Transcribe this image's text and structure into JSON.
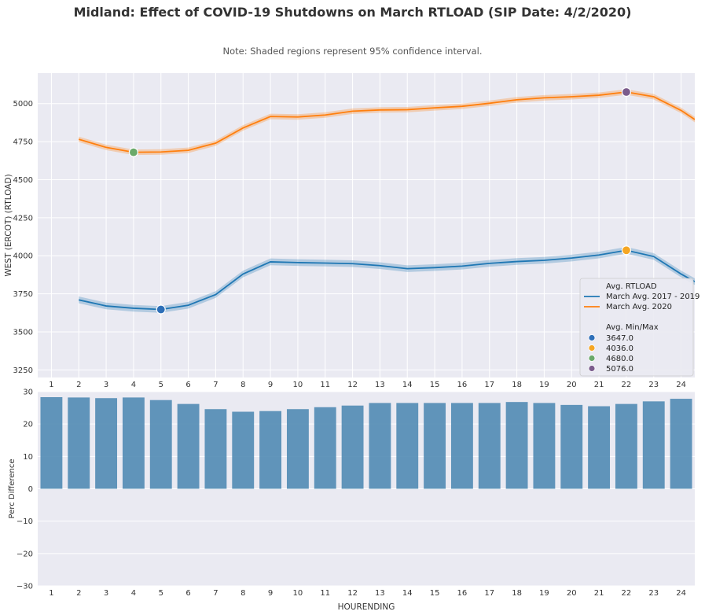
{
  "title": "Midland: Effect of COVID-19 Shutdowns on March RTLOAD (SIP Date: 4/2/2020)",
  "note": "Note: Shaded regions represent 95% confidence interval.",
  "colors": {
    "background": "#eaeaf2",
    "series_2017_2019": "#1f77b4",
    "series_2020": "#ff7f0e",
    "bar": "#4c87b2",
    "marker_3647": "#2e6fb8",
    "marker_4036": "#f5a623",
    "marker_4680": "#6aa96a",
    "marker_5076": "#7b5c8c"
  },
  "chart_data": [
    {
      "type": "line",
      "xlabel": "",
      "ylabel": "WEST (ERCOT) (RTLOAD)",
      "x": [
        2,
        3,
        4,
        5,
        6,
        7,
        8,
        9,
        10,
        11,
        12,
        13,
        14,
        15,
        16,
        17,
        18,
        19,
        20,
        21,
        22,
        23,
        24,
        24.5
      ],
      "xticks": [
        "1",
        "2",
        "3",
        "4",
        "5",
        "6",
        "7",
        "8",
        "9",
        "10",
        "11",
        "12",
        "13",
        "14",
        "15",
        "16",
        "17",
        "18",
        "19",
        "20",
        "21",
        "22",
        "23",
        "24"
      ],
      "xlim": [
        0.5,
        24.5
      ],
      "ylim": [
        3200,
        5200
      ],
      "yticks": [
        3250,
        3500,
        3750,
        4000,
        4250,
        4500,
        4750,
        5000
      ],
      "series": [
        {
          "name": "March Avg. 2017 - 2019",
          "values": [
            3710,
            3670,
            3655,
            3647,
            3675,
            3745,
            3880,
            3960,
            3955,
            3952,
            3948,
            3935,
            3915,
            3922,
            3932,
            3950,
            3962,
            3970,
            3985,
            4005,
            4036,
            3995,
            3880,
            3830
          ],
          "ci": 22
        },
        {
          "name": "March Avg. 2020",
          "values": [
            4765,
            4712,
            4680,
            4682,
            4693,
            4740,
            4840,
            4915,
            4912,
            4925,
            4950,
            4958,
            4960,
            4972,
            4982,
            5002,
            5025,
            5038,
            5045,
            5055,
            5076,
            5045,
            4955,
            4895
          ],
          "ci": 18
        }
      ],
      "markers": [
        {
          "label": "3647.0",
          "x": 5,
          "y": 3647
        },
        {
          "label": "4036.0",
          "x": 22,
          "y": 4036
        },
        {
          "label": "4680.0",
          "x": 4,
          "y": 4680
        },
        {
          "label": "5076.0",
          "x": 22,
          "y": 5076
        }
      ],
      "legend": {
        "placement": "bottom-right",
        "title1": "Avg. RTLOAD",
        "title2": "Avg. Min/Max"
      },
      "grid": true
    },
    {
      "type": "bar",
      "xlabel": "HOURENDING",
      "ylabel": "Perc Difference",
      "categories": [
        "1",
        "2",
        "3",
        "4",
        "5",
        "6",
        "7",
        "8",
        "9",
        "10",
        "11",
        "12",
        "13",
        "14",
        "15",
        "16",
        "17",
        "18",
        "19",
        "20",
        "21",
        "22",
        "23",
        "24"
      ],
      "values": [
        28.3,
        28.2,
        28.0,
        28.2,
        27.4,
        26.2,
        24.6,
        23.8,
        24.0,
        24.6,
        25.2,
        25.7,
        26.5,
        26.5,
        26.5,
        26.5,
        26.5,
        26.8,
        26.5,
        25.9,
        25.5,
        26.2,
        27.0,
        27.8
      ],
      "ylim": [
        -30,
        30
      ],
      "yticks": [
        -30,
        -20,
        -10,
        0,
        10,
        20,
        30
      ],
      "grid": true
    }
  ]
}
